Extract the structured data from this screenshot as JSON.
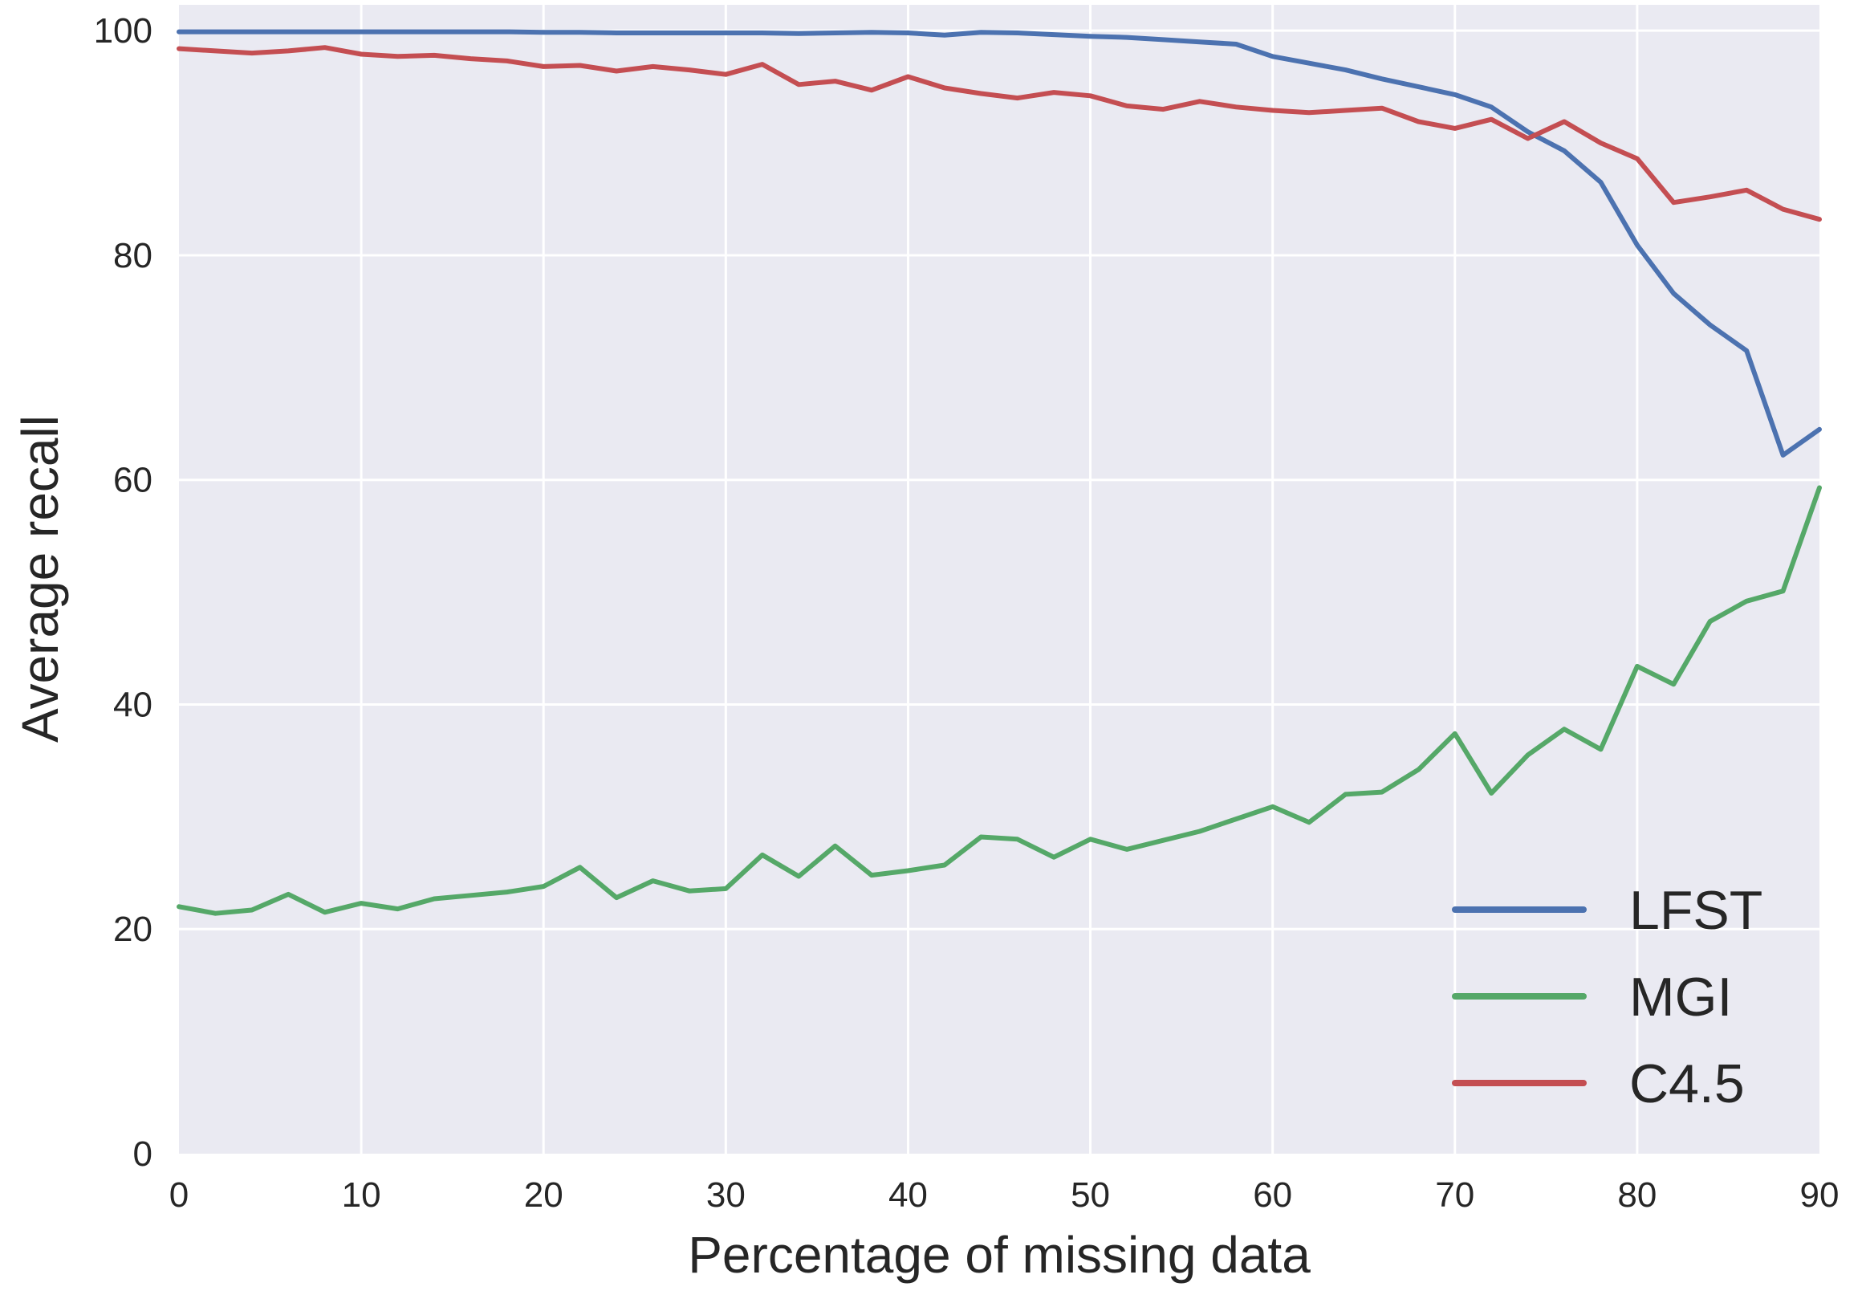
{
  "chart_data": {
    "type": "line",
    "title": "",
    "xlabel": "Percentage of missing data",
    "ylabel": "Average recall",
    "xlim": [
      0,
      90
    ],
    "ylim": [
      0,
      102.3
    ],
    "xticks": [
      0,
      10,
      20,
      30,
      40,
      50,
      60,
      70,
      80,
      90
    ],
    "yticks": [
      0,
      20,
      40,
      60,
      80,
      100
    ],
    "grid": true,
    "legend_position": "lower right",
    "plot_bg_color": "#EAEAF2",
    "grid_color": "#FFFFFF",
    "text_color": "#262626",
    "x": [
      0,
      2,
      4,
      6,
      8,
      10,
      12,
      14,
      16,
      18,
      20,
      22,
      24,
      26,
      28,
      30,
      32,
      34,
      36,
      38,
      40,
      42,
      44,
      46,
      48,
      50,
      52,
      54,
      56,
      58,
      60,
      62,
      64,
      66,
      68,
      70,
      72,
      74,
      76,
      78,
      80,
      82,
      84,
      86,
      88,
      90
    ],
    "series": [
      {
        "name": "LFST",
        "color": "#4C72B0",
        "values": [
          99.9,
          99.9,
          99.9,
          99.9,
          99.9,
          99.9,
          99.9,
          99.9,
          99.9,
          99.9,
          99.85,
          99.85,
          99.8,
          99.8,
          99.8,
          99.8,
          99.8,
          99.75,
          99.8,
          99.85,
          99.8,
          99.6,
          99.85,
          99.8,
          99.65,
          99.5,
          99.4,
          99.2,
          99.0,
          98.8,
          97.7,
          97.1,
          96.5,
          95.7,
          95.0,
          94.3,
          93.2,
          91.0,
          89.3,
          86.5,
          80.9,
          76.6,
          73.8,
          71.5,
          62.2,
          64.5
        ]
      },
      {
        "name": "MGI",
        "color": "#55A868",
        "values": [
          22.0,
          21.4,
          21.7,
          23.1,
          21.5,
          22.3,
          21.8,
          22.7,
          23.0,
          23.3,
          23.8,
          25.5,
          22.8,
          24.3,
          23.4,
          23.6,
          26.6,
          24.7,
          27.4,
          24.8,
          25.2,
          25.7,
          28.2,
          28.0,
          26.4,
          28.0,
          27.1,
          27.9,
          28.7,
          29.8,
          30.9,
          29.5,
          32.0,
          32.2,
          34.2,
          37.4,
          32.1,
          35.5,
          37.8,
          36.0,
          43.4,
          41.8,
          47.4,
          49.2,
          50.1,
          59.3
        ]
      },
      {
        "name": "C4.5",
        "color": "#C44E52",
        "values": [
          98.4,
          98.2,
          98.0,
          98.2,
          98.5,
          97.9,
          97.7,
          97.8,
          97.5,
          97.3,
          96.8,
          96.9,
          96.4,
          96.8,
          96.5,
          96.1,
          97.0,
          95.2,
          95.5,
          94.7,
          95.9,
          94.9,
          94.4,
          94.0,
          94.5,
          94.2,
          93.3,
          93.0,
          93.7,
          93.2,
          92.9,
          92.7,
          92.9,
          93.1,
          91.9,
          91.3,
          92.1,
          90.4,
          91.9,
          90.0,
          88.6,
          84.7,
          85.2,
          85.8,
          84.1,
          83.2
        ]
      }
    ]
  }
}
